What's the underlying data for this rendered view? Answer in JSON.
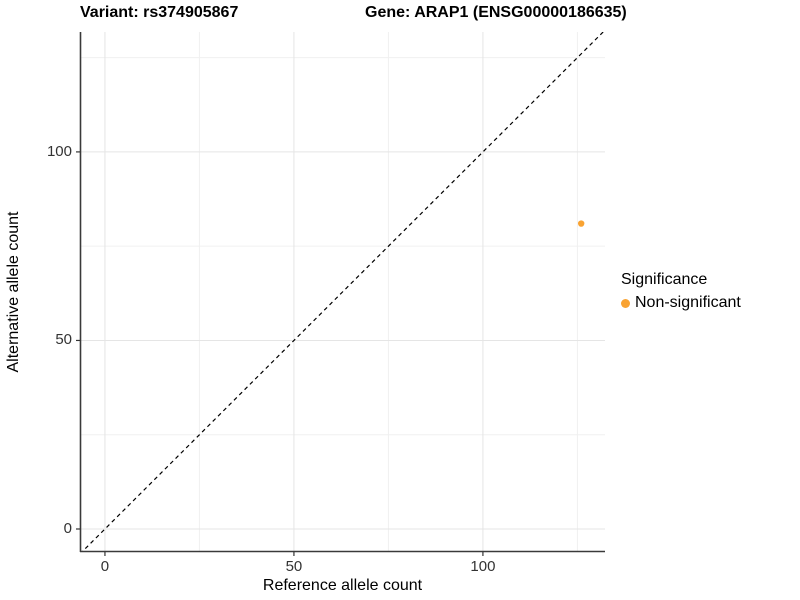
{
  "titles": {
    "variant": "Variant: rs374905867",
    "gene": "Gene: ARAP1 (ENSG00000186635)"
  },
  "axes": {
    "x_title": "Reference allele count",
    "y_title": "Alternative allele count"
  },
  "legend": {
    "title": "Significance",
    "items": [
      {
        "label": "Non-significant",
        "color": "#F9A332"
      }
    ]
  },
  "colors": {
    "background": "#FFFFFF",
    "grid_major": "#E5E5E5",
    "grid_minor": "#F0F0F0",
    "axis_line": "#3A3A3A",
    "tick_mark": "#333333",
    "tick_label": "#333333",
    "identity_line": "#000000",
    "point": "#F9A332"
  },
  "chart_data": {
    "type": "scatter",
    "title": "Variant: rs374905867 — Gene: ARAP1 (ENSG00000186635)",
    "xlabel": "Reference allele count",
    "ylabel": "Alternative allele count",
    "xlim": [
      -6.6,
      132.3
    ],
    "ylim": [
      -6.1,
      131.8
    ],
    "x_major_ticks": [
      0,
      50,
      100
    ],
    "x_minor_ticks": [
      25,
      75,
      125
    ],
    "y_major_ticks": [
      0,
      50,
      100
    ],
    "y_minor_ticks": [
      25,
      75,
      125
    ],
    "grid": true,
    "legend_position": "right",
    "identity_line": {
      "slope": 1,
      "intercept": 0,
      "style": "dashed"
    },
    "series": [
      {
        "name": "Non-significant",
        "color": "#F9A332",
        "points": [
          {
            "x": 126,
            "y": 81
          }
        ]
      }
    ]
  }
}
